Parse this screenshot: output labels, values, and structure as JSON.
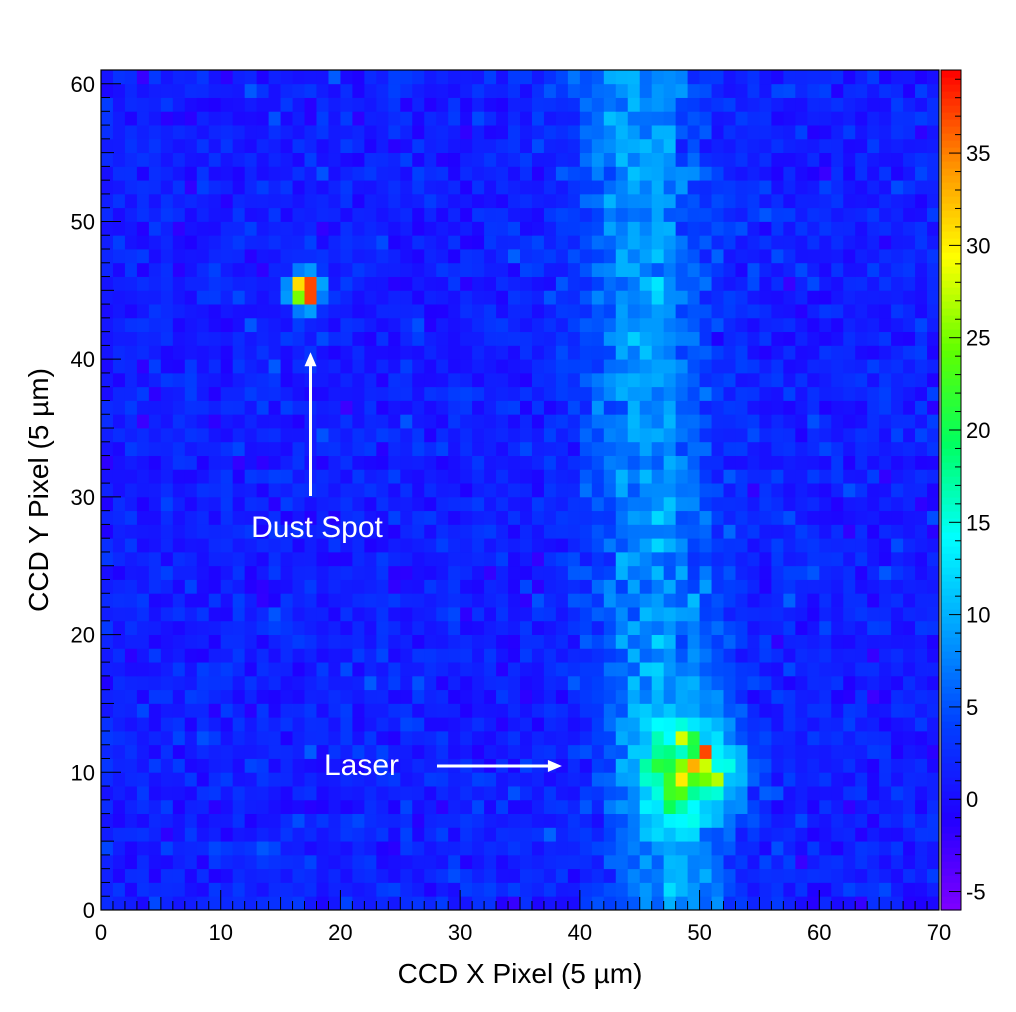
{
  "chart_data": {
    "type": "heatmap",
    "title": "",
    "xlabel": "CCD X Pixel (5 µm)",
    "ylabel": "CCD Y Pixel (5 µm)",
    "xlim": [
      0,
      70
    ],
    "ylim": [
      0,
      61
    ],
    "bins_x": 70,
    "bins_y": 61,
    "zlim": [
      -6,
      39.5
    ],
    "x_ticks": [
      "0",
      "10",
      "20",
      "30",
      "40",
      "50",
      "60",
      "70"
    ],
    "y_ticks": [
      "0",
      "10",
      "20",
      "30",
      "40",
      "50",
      "60"
    ],
    "colorbar_ticks": [
      "-5",
      "0",
      "5",
      "10",
      "15",
      "20",
      "25",
      "30",
      "35"
    ],
    "colormap": [
      "#8000ff",
      "#2000ff",
      "#0040ff",
      "#00a0ff",
      "#00ffff",
      "#00ff60",
      "#60ff00",
      "#ffff00",
      "#ff9000",
      "#ff0000"
    ],
    "baseline": {
      "mean": 1.5,
      "noise": 2.5
    },
    "features": [
      {
        "name": "laser-track",
        "x_center_at_bottom": 47.5,
        "x_center_at_top": 44.5,
        "width_sigma": 3.5,
        "amplitude": 7.5
      },
      {
        "name": "laser-spot",
        "x": 49.5,
        "y": 10,
        "sigma_x": 2.8,
        "sigma_y": 2.4,
        "amplitude": 17
      },
      {
        "name": "dust-spot",
        "x": 17,
        "y": 45,
        "sigma": 0.9,
        "amplitude": 33
      }
    ],
    "hot_pixels": [
      {
        "x": 17,
        "y": 45,
        "value": 37
      },
      {
        "x": 17,
        "y": 44,
        "value": 37
      },
      {
        "x": 16,
        "y": 45,
        "value": 31
      },
      {
        "x": 50,
        "y": 11,
        "value": 37
      },
      {
        "x": 48,
        "y": 12,
        "value": 28
      },
      {
        "x": 51,
        "y": 9,
        "value": 27
      },
      {
        "x": 49,
        "y": 10,
        "value": 33
      }
    ],
    "annotations": [
      {
        "text": "Dust Spot",
        "points_to": {
          "x": 17.5,
          "y": 40.5
        }
      },
      {
        "text": "Laser",
        "points_to": {
          "x": 38.5,
          "y": 10.5
        }
      }
    ]
  }
}
